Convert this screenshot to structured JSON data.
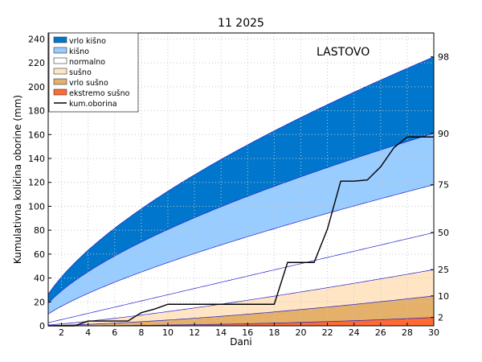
{
  "chart_data": {
    "type": "area",
    "title": "11 2025",
    "station": "LASTOVO",
    "xlabel": "Dani",
    "ylabel": "Kumulativna količina oborine (mm)",
    "xlim": [
      1,
      30
    ],
    "ylim": [
      0,
      245
    ],
    "x_ticks": [
      2,
      4,
      6,
      8,
      10,
      12,
      14,
      16,
      18,
      20,
      22,
      24,
      26,
      28,
      30
    ],
    "y_ticks": [
      0,
      20,
      40,
      60,
      80,
      100,
      120,
      140,
      160,
      180,
      200,
      220,
      240
    ],
    "grid": true,
    "legend_placement": "top-left",
    "percentile_labels": [
      {
        "label": "98",
        "y": 225
      },
      {
        "label": "90",
        "y": 161
      },
      {
        "label": "75",
        "y": 118
      },
      {
        "label": "50",
        "y": 78
      },
      {
        "label": "25",
        "y": 47
      },
      {
        "label": "10",
        "y": 25
      },
      {
        "label": "2",
        "y": 7
      }
    ],
    "bands": [
      {
        "name": "vrlo kišno",
        "color": "#0077cc",
        "lower": "p90",
        "upper": "p98"
      },
      {
        "name": "kišno",
        "color": "#99ccff",
        "lower": "p75",
        "upper": "p90"
      },
      {
        "name": "normalno",
        "color": "#ffffff",
        "lower": "p25",
        "upper": "p75"
      },
      {
        "name": "sušno",
        "color": "#ffe5c4",
        "lower": "p10",
        "upper": "p25"
      },
      {
        "name": "vrlo sušno",
        "color": "#e5b06a",
        "lower": "p2",
        "upper": "p10"
      },
      {
        "name": "ekstremo sušno",
        "color": "#ff6a33",
        "lower": "zero",
        "upper": "p2"
      }
    ],
    "percentile_curves": {
      "p98": {
        "end": 225,
        "exp": 0.63
      },
      "p90": {
        "end": 161,
        "exp": 0.63
      },
      "p75": {
        "end": 118,
        "exp": 0.73
      },
      "p50": {
        "end": 78,
        "exp": 1.0
      },
      "p25": {
        "end": 47,
        "exp": 1.25
      },
      "p10": {
        "end": 25,
        "exp": 1.5
      },
      "p2": {
        "end": 7,
        "exp": 2.2
      }
    },
    "series": [
      {
        "name": "kum.oborina",
        "color": "#000000",
        "x": [
          1,
          2,
          3,
          4,
          5,
          6,
          7,
          8,
          9,
          10,
          11,
          12,
          13,
          14,
          15,
          16,
          17,
          18,
          19,
          20,
          21,
          22,
          23,
          24,
          25,
          26,
          27,
          28,
          29,
          30
        ],
        "values": [
          0,
          0,
          0,
          4,
          4,
          4,
          4,
          11,
          14,
          18,
          18,
          18,
          18,
          18,
          18,
          18,
          18,
          18,
          53,
          53,
          53,
          81,
          121,
          121,
          122,
          133,
          149,
          158,
          158,
          158
        ]
      }
    ]
  }
}
